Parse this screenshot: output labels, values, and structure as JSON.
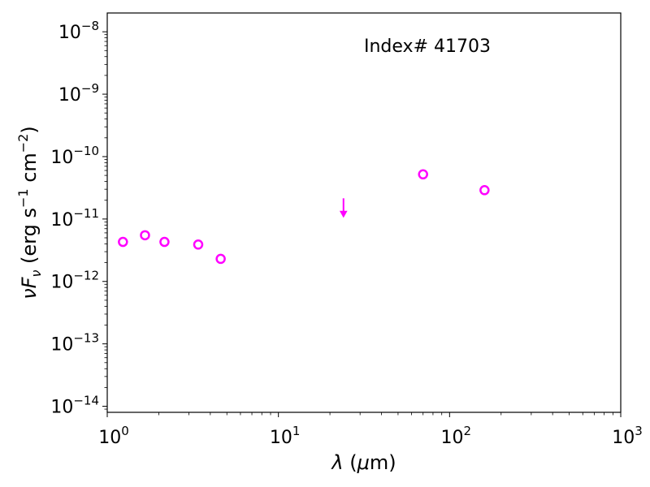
{
  "chart_data": {
    "type": "scatter",
    "title": "",
    "annotation": "Index# 41703",
    "xlabel": "λ (μm)",
    "ylabel": "νF_ν (erg s⁻¹ cm⁻²)",
    "xscale": "log",
    "yscale": "log",
    "xlim": [
      1,
      1000
    ],
    "ylim": [
      8e-15,
      2e-08
    ],
    "grid": false,
    "x_ticks": [
      {
        "value": 1,
        "base": "10",
        "exp": "0"
      },
      {
        "value": 10,
        "base": "10",
        "exp": "1"
      },
      {
        "value": 100,
        "base": "10",
        "exp": "2"
      },
      {
        "value": 1000,
        "base": "10",
        "exp": "3"
      }
    ],
    "y_ticks": [
      {
        "value": 1e-14,
        "base": "10",
        "exp": "−14"
      },
      {
        "value": 1e-13,
        "base": "10",
        "exp": "−13"
      },
      {
        "value": 1e-12,
        "base": "10",
        "exp": "−12"
      },
      {
        "value": 1e-11,
        "base": "10",
        "exp": "−11"
      },
      {
        "value": 1e-10,
        "base": "10",
        "exp": "−10"
      },
      {
        "value": 1e-09,
        "base": "10",
        "exp": "−9"
      },
      {
        "value": 1e-08,
        "base": "10",
        "exp": "−8"
      }
    ],
    "marker_color": "#ff00ff",
    "detections": [
      {
        "x": 1.235,
        "y": 4.3e-12
      },
      {
        "x": 1.662,
        "y": 5.5e-12
      },
      {
        "x": 2.159,
        "y": 4.3e-12
      },
      {
        "x": 3.4,
        "y": 3.9e-12
      },
      {
        "x": 4.6,
        "y": 2.3e-12
      },
      {
        "x": 70,
        "y": 5.2e-11
      },
      {
        "x": 160,
        "y": 2.9e-11
      }
    ],
    "upper_limits": [
      {
        "x": 24,
        "y": 1.5e-11
      }
    ]
  }
}
